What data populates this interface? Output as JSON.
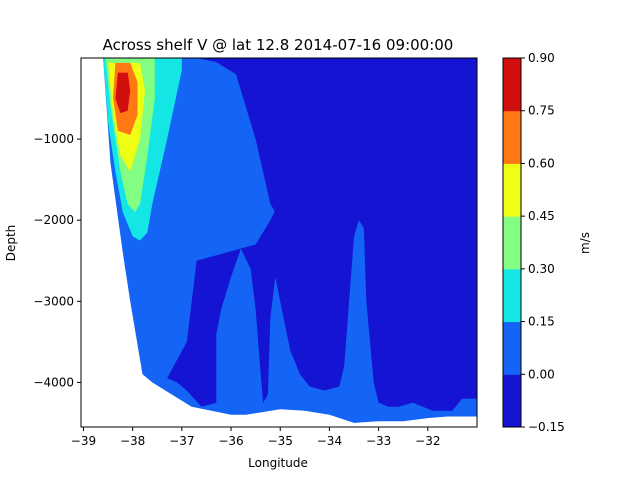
{
  "chart_data": {
    "type": "heatmap",
    "title": "Across shelf V @ lat 12.8 2014-07-16 09:00:00",
    "xlabel": "Longitude",
    "ylabel": "Depth",
    "xlim": [
      -39.05,
      -31.0
    ],
    "ylim": [
      -4550,
      0
    ],
    "xticks": [
      -39,
      -38,
      -37,
      -36,
      -35,
      -34,
      -33,
      -32
    ],
    "yticks": [
      -1000,
      -2000,
      -3000,
      -4000
    ],
    "grid": false,
    "colorbar": {
      "label": "m/s",
      "levels": [
        -0.15,
        0.0,
        0.15,
        0.3,
        0.45,
        0.6,
        0.75,
        0.9
      ],
      "tick_labels": [
        "−0.15",
        "0.00",
        "0.15",
        "0.30",
        "0.45",
        "0.60",
        "0.75",
        "0.90"
      ],
      "colors": [
        "#1414d2",
        "#1464f5",
        "#14e6e6",
        "#82ff82",
        "#eeff14",
        "#ff7814",
        "#d20f0f"
      ]
    },
    "seafloor_profile": [
      {
        "lon": -38.6,
        "depth": -30
      },
      {
        "lon": -38.45,
        "depth": -1300
      },
      {
        "lon": -38.2,
        "depth": -2400
      },
      {
        "lon": -38.05,
        "depth": -3000
      },
      {
        "lon": -37.8,
        "depth": -3900
      },
      {
        "lon": -37.6,
        "depth": -4000
      },
      {
        "lon": -37.2,
        "depth": -4150
      },
      {
        "lon": -36.8,
        "depth": -4300
      },
      {
        "lon": -36.4,
        "depth": -4350
      },
      {
        "lon": -36.0,
        "depth": -4400
      },
      {
        "lon": -35.7,
        "depth": -4400
      },
      {
        "lon": -35.0,
        "depth": -4330
      },
      {
        "lon": -34.5,
        "depth": -4350
      },
      {
        "lon": -34.0,
        "depth": -4400
      },
      {
        "lon": -33.5,
        "depth": -4500
      },
      {
        "lon": -33.0,
        "depth": -4480
      },
      {
        "lon": -32.5,
        "depth": -4480
      },
      {
        "lon": -32.0,
        "depth": -4440
      },
      {
        "lon": -31.6,
        "depth": -4420
      },
      {
        "lon": -31.0,
        "depth": -4420
      }
    ],
    "regions": [
      {
        "value_range": [
          0.0,
          0.15
        ],
        "outline": [
          [
            -38.6,
            0
          ],
          [
            -31.0,
            0
          ],
          [
            -31.0,
            -4420
          ],
          [
            -31.6,
            -4420
          ],
          [
            -32.0,
            -4440
          ],
          [
            -32.5,
            -4480
          ],
          [
            -33.0,
            -4480
          ],
          [
            -33.5,
            -4500
          ],
          [
            -34.0,
            -4400
          ],
          [
            -34.5,
            -4350
          ],
          [
            -35.0,
            -4330
          ],
          [
            -35.7,
            -4400
          ],
          [
            -36.0,
            -4400
          ],
          [
            -36.4,
            -4350
          ],
          [
            -36.8,
            -4300
          ],
          [
            -37.2,
            -4150
          ],
          [
            -37.6,
            -4000
          ],
          [
            -37.8,
            -3900
          ],
          [
            -38.05,
            -3000
          ],
          [
            -38.2,
            -2400
          ],
          [
            -38.45,
            -1300
          ]
        ]
      },
      {
        "value_range": [
          -0.15,
          0.0
        ],
        "outline": [
          [
            -36.7,
            0
          ],
          [
            -31.0,
            0
          ],
          [
            -31.0,
            -2200
          ],
          [
            -31.3,
            -2300
          ],
          [
            -31.8,
            -2000
          ],
          [
            -32.2,
            -1900
          ],
          [
            -32.5,
            -1500
          ],
          [
            -32.6,
            -800
          ],
          [
            -32.3,
            -400
          ],
          [
            -31.8,
            -150
          ],
          [
            -31.3,
            -100
          ],
          [
            -31.0,
            -200
          ],
          [
            -31.0,
            -4200
          ],
          [
            -31.3,
            -4200
          ],
          [
            -31.5,
            -4350
          ],
          [
            -31.9,
            -4350
          ],
          [
            -32.3,
            -4250
          ],
          [
            -32.6,
            -4300
          ],
          [
            -32.8,
            -4300
          ],
          [
            -33.0,
            -4250
          ],
          [
            -33.1,
            -4000
          ],
          [
            -33.25,
            -3000
          ],
          [
            -33.3,
            -2100
          ],
          [
            -33.4,
            -2000
          ],
          [
            -33.5,
            -2200
          ],
          [
            -33.6,
            -3000
          ],
          [
            -33.7,
            -3800
          ],
          [
            -33.8,
            -4050
          ],
          [
            -34.1,
            -4100
          ],
          [
            -34.4,
            -4050
          ],
          [
            -34.6,
            -3900
          ],
          [
            -34.8,
            -3600
          ],
          [
            -35.0,
            -3000
          ],
          [
            -35.1,
            -2700
          ],
          [
            -35.2,
            -3200
          ],
          [
            -35.25,
            -4150
          ],
          [
            -35.35,
            -4250
          ],
          [
            -35.5,
            -3100
          ],
          [
            -35.6,
            -2600
          ],
          [
            -35.8,
            -2350
          ],
          [
            -36.0,
            -2700
          ],
          [
            -36.2,
            -3100
          ],
          [
            -36.3,
            -3400
          ],
          [
            -36.3,
            -4250
          ],
          [
            -36.6,
            -4300
          ],
          [
            -36.9,
            -4100
          ],
          [
            -37.1,
            -4000
          ],
          [
            -37.3,
            -3950
          ],
          [
            -36.9,
            -3500
          ],
          [
            -36.7,
            -2500
          ],
          [
            -35.5,
            -2300
          ],
          [
            -35.2,
            -2000
          ],
          [
            -34.8,
            -1500
          ],
          [
            -34.5,
            -700
          ],
          [
            -34.2,
            -2000
          ],
          [
            -34.0,
            -2300
          ],
          [
            -34.3,
            -2400
          ],
          [
            -35.0,
            -2500
          ],
          [
            -34.8,
            -2200
          ],
          [
            -35.2,
            -1800
          ],
          [
            -35.5,
            -1000
          ],
          [
            -35.9,
            -200
          ],
          [
            -36.3,
            -50
          ]
        ]
      },
      {
        "value_range": [
          0.15,
          0.3
        ],
        "outline": [
          [
            -38.6,
            0
          ],
          [
            -37.0,
            0
          ],
          [
            -37.0,
            -150
          ],
          [
            -37.3,
            -1000
          ],
          [
            -37.6,
            -1800
          ],
          [
            -37.7,
            -2150
          ],
          [
            -37.85,
            -2250
          ],
          [
            -38.0,
            -2200
          ],
          [
            -38.2,
            -1900
          ],
          [
            -38.35,
            -1400
          ],
          [
            -38.5,
            -800
          ]
        ]
      },
      {
        "value_range": [
          0.3,
          0.45
        ],
        "outline": [
          [
            -38.55,
            0
          ],
          [
            -37.55,
            0
          ],
          [
            -37.55,
            -500
          ],
          [
            -37.7,
            -1200
          ],
          [
            -37.85,
            -1800
          ],
          [
            -37.95,
            -1900
          ],
          [
            -38.1,
            -1800
          ],
          [
            -38.25,
            -1400
          ],
          [
            -38.45,
            -600
          ]
        ]
      },
      {
        "value_range": [
          0.45,
          0.6
        ],
        "outline": [
          [
            -38.5,
            -60
          ],
          [
            -37.85,
            -60
          ],
          [
            -37.75,
            -400
          ],
          [
            -37.85,
            -1000
          ],
          [
            -38.05,
            -1400
          ],
          [
            -38.25,
            -1200
          ],
          [
            -38.4,
            -700
          ]
        ]
      },
      {
        "value_range": [
          0.6,
          0.75
        ],
        "outline": [
          [
            -38.35,
            -60
          ],
          [
            -38.05,
            -60
          ],
          [
            -37.9,
            -300
          ],
          [
            -37.9,
            -700
          ],
          [
            -38.05,
            -950
          ],
          [
            -38.3,
            -900
          ],
          [
            -38.4,
            -500
          ]
        ]
      },
      {
        "value_range": [
          0.75,
          0.9
        ],
        "outline": [
          [
            -38.3,
            -180
          ],
          [
            -38.1,
            -180
          ],
          [
            -38.05,
            -400
          ],
          [
            -38.1,
            -650
          ],
          [
            -38.25,
            -680
          ],
          [
            -38.35,
            -500
          ]
        ]
      }
    ]
  }
}
